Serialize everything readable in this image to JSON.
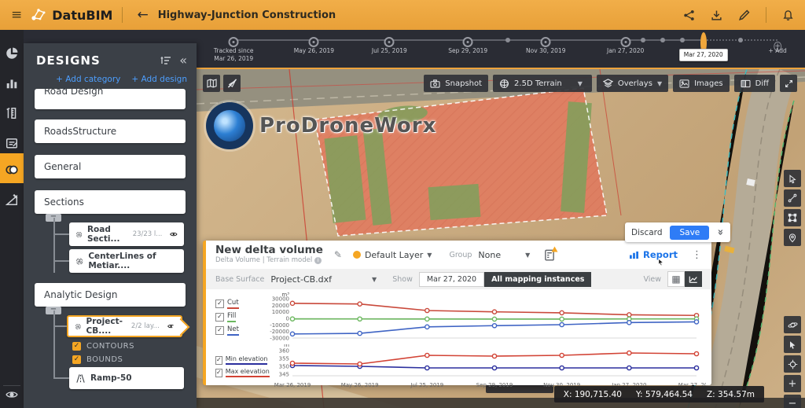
{
  "topbar": {
    "menu_icon": "≡",
    "brand": "DatuBIM",
    "back_icon": "←",
    "title": "Highway-Junction Construction"
  },
  "timeline": {
    "nodes": [
      {
        "type": "start",
        "x": 6.1,
        "label": "Tracked since",
        "label2": "Mar 26, 2019"
      },
      {
        "type": "major",
        "x": 19.3,
        "label": "May 26, 2019"
      },
      {
        "type": "major",
        "x": 31.7,
        "label": "Jul 25, 2019"
      },
      {
        "type": "major",
        "x": 44.6,
        "label": "Sep 29, 2019"
      },
      {
        "type": "major",
        "x": 57.4,
        "label": "Nov 30, 2019"
      },
      {
        "type": "major",
        "x": 70.5,
        "label": "Jan 27, 2020"
      },
      {
        "type": "selected",
        "x": 83.3,
        "label": "Mar 27, 2020"
      },
      {
        "type": "add",
        "x": 95.5,
        "label": "+ Add"
      }
    ],
    "minor_dots": [
      51.2,
      73.4,
      76.6,
      79.8,
      89.4
    ]
  },
  "sidebar": {
    "title": "DESIGNS",
    "collapse_icon": "«",
    "add_category": "+ Add category",
    "add_design": "+ Add design",
    "cards": {
      "road_design": "Road Design",
      "roads_structure": "RoadsStructure",
      "general": "General",
      "sections": "Sections",
      "analytic": "Analytic Design"
    },
    "sections_children": [
      {
        "label": "Road Secti...",
        "count": "23/23 l..."
      },
      {
        "label": "CenterLines of Metiar....",
        "count": ""
      }
    ],
    "analytic_children": {
      "selected": {
        "label": "Project-CB....",
        "count": "2/2 lay..."
      },
      "toggles": [
        "CONTOURS",
        "BOUNDS"
      ],
      "ramp": "Ramp-50"
    }
  },
  "map": {
    "watermark": "ProDroneWorx",
    "toolbar": {
      "snapshot": "Snapshot",
      "terrain": "2.5D Terrain",
      "overlays": "Overlays",
      "images": "Images",
      "diff": "Diff"
    },
    "coords": {
      "x": "X: 190,715.40",
      "y": "Y: 579,464.54",
      "z": "Z: 354.57m"
    }
  },
  "panel": {
    "discard": "Discard",
    "save": "Save",
    "title": "New delta volume",
    "subtitle": "Delta Volume | Terrain model",
    "layer_value": "Default Layer",
    "group_label": "Group",
    "group_value": "None",
    "report": "Report",
    "base_surface_label": "Base Surface",
    "base_surface_value": "Project-CB.dxf",
    "show_label": "Show",
    "show_date": "Mar 27, 2020",
    "show_all": "All mapping instances",
    "view_label": "View"
  },
  "chart_data": [
    {
      "type": "line",
      "unit": "m³",
      "categories": [
        "Mar 26, 2019",
        "May 26, 2019",
        "Jul 25, 2019",
        "Sep 29, 2019",
        "Nov 30, 2019",
        "Jan 27, 2020",
        "Mar 27, 2020"
      ],
      "series": [
        {
          "name": "Cut",
          "color": "#c9493b",
          "values": [
            23000,
            22000,
            12000,
            10000,
            8500,
            5500,
            4500
          ]
        },
        {
          "name": "Fill",
          "color": "#6cb85f",
          "values": [
            -800,
            -900,
            -1000,
            -1100,
            -1100,
            -900,
            -800
          ]
        },
        {
          "name": "Net",
          "color": "#3f64c4",
          "values": [
            -23800,
            -22900,
            -13000,
            -11100,
            -9600,
            -6400,
            -5300
          ]
        }
      ],
      "ylim": [
        -30000,
        30000
      ],
      "yticks": [
        30000,
        20000,
        10000,
        0,
        -10000,
        -20000,
        -30000
      ],
      "show_x_labels": false,
      "legend_position": "left",
      "grid": "zero-line"
    },
    {
      "type": "line",
      "unit": "m",
      "categories": [
        "Mar 26, 2019",
        "May 26, 2019",
        "Jul 25, 2019",
        "Sep 29, 2019",
        "Nov 30, 2019",
        "Jan 27, 2020",
        "Mar 27, 2020"
      ],
      "series": [
        {
          "name": "Min elevation",
          "color": "#2b2f9e",
          "values": [
            350.5,
            350,
            349,
            349,
            349,
            349,
            349
          ]
        },
        {
          "name": "Max elevation",
          "color": "#d24335",
          "values": [
            352,
            351.5,
            357,
            356.5,
            357,
            358.5,
            358
          ]
        }
      ],
      "ylim": [
        344,
        361
      ],
      "yticks": [
        360,
        355,
        350,
        345
      ],
      "show_x_labels": true,
      "legend_position": "left",
      "grid": "baseline"
    }
  ]
}
